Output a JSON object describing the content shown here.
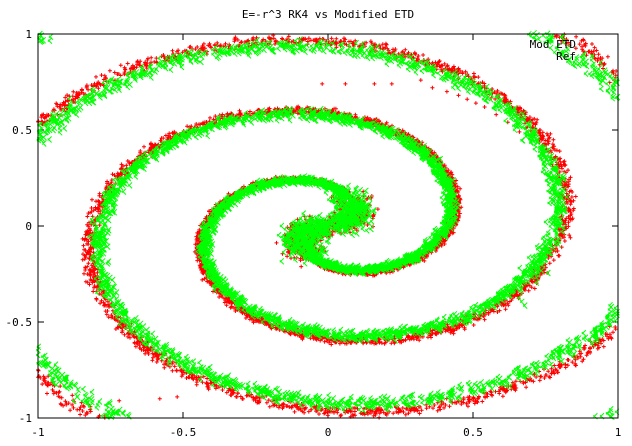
{
  "chart_data": {
    "type": "scatter",
    "title": "E=-r^3 RK4 vs Modified ETD",
    "xlabel": "",
    "ylabel": "",
    "xlim": [
      -1,
      1
    ],
    "ylim": [
      -1,
      1
    ],
    "x_ticks": [
      "-1",
      "-0.5",
      "0",
      "0.5",
      "1"
    ],
    "y_ticks": [
      "1",
      "0.5",
      "0",
      "-0.5",
      "-1"
    ],
    "grid": false,
    "legend_position": "top-right",
    "series": [
      {
        "name": "Mod ETD",
        "marker": "+",
        "color": "#ff0000",
        "arms": [
          {
            "r0": 0.03,
            "phase": 0.0,
            "turns": 2.35,
            "growth": 0.125,
            "rjit": 0.03,
            "perturn": 1900
          },
          {
            "r0": 0.03,
            "phase": 3.1416,
            "turns": 2.35,
            "growth": 0.125,
            "rjit": 0.03,
            "perturn": 1900
          }
        ],
        "tail_points": [
          [
            -0.02,
            0.74
          ],
          [
            0.06,
            0.74
          ],
          [
            0.16,
            0.74
          ],
          [
            0.22,
            0.74
          ],
          [
            0.32,
            0.76
          ],
          [
            0.36,
            0.72
          ],
          [
            0.41,
            0.7
          ],
          [
            0.45,
            0.68
          ],
          [
            0.48,
            0.66
          ],
          [
            0.51,
            0.64
          ],
          [
            0.54,
            0.62
          ],
          [
            0.58,
            0.58
          ],
          [
            0.62,
            0.54
          ],
          [
            0.66,
            0.49
          ],
          [
            -0.92,
            -0.93
          ],
          [
            -0.85,
            -0.92
          ],
          [
            -0.72,
            -0.91
          ],
          [
            -0.58,
            -0.9
          ],
          [
            -0.52,
            -0.89
          ]
        ]
      },
      {
        "name": "Ref",
        "marker": "x",
        "color": "#00ff00",
        "arms": [
          {
            "r0": 0.03,
            "phase": 0.0,
            "turns": 2.25,
            "growth": 0.12,
            "rjit": 0.035,
            "perturn": 2000
          },
          {
            "r0": 0.03,
            "phase": 3.1416,
            "turns": 2.25,
            "growth": 0.12,
            "rjit": 0.035,
            "perturn": 2000
          }
        ],
        "tail_points": [
          [
            -0.72,
            0.21
          ],
          [
            -0.73,
            0.18
          ],
          [
            -0.74,
            0.15
          ],
          [
            -0.75,
            0.12
          ],
          [
            -0.74,
            0.08
          ],
          [
            0.66,
            -0.38
          ],
          [
            0.67,
            -0.4
          ],
          [
            0.68,
            -0.42
          ],
          [
            0.72,
            -0.3
          ],
          [
            0.76,
            -0.25
          ]
        ]
      }
    ]
  }
}
